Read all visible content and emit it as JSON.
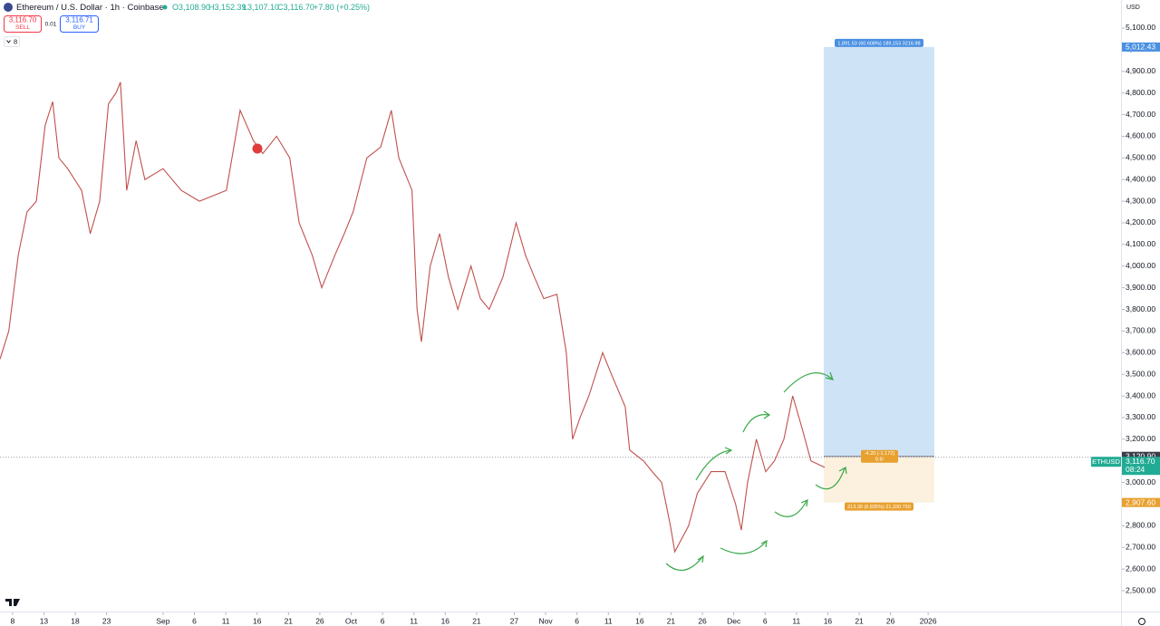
{
  "ui": {
    "currency": "USD",
    "indicators": "8",
    "sell": {
      "price": "3,116.70",
      "label": "SELL"
    },
    "spread": "0.01",
    "buy": {
      "price": "3,116.71",
      "label": "BUY"
    },
    "ohlc": {
      "open": "O3,108.90",
      "high": "H3,152.39",
      "low": "L3,107.10",
      "close": "C3,116.70",
      "change": "+7.80 (+0.25%)"
    },
    "symbol": "ETHUSD",
    "countdown": "08:24"
  },
  "chart_data": {
    "type": "line",
    "title": "Ethereum / U.S. Dollar · 1h · Coinbase",
    "color": "#c0504d",
    "x": [
      -2.0,
      -0.6,
      0.9,
      2.3,
      3.8,
      5.2,
      6.4,
      7.4,
      8.8,
      11.0,
      12.4,
      13.9,
      15.3,
      16.5,
      17.2,
      18.2,
      19.7,
      21.1,
      24.0,
      26.9,
      29.8,
      34.1,
      36.3,
      38.4,
      39.9,
      42.1,
      44.2,
      45.7,
      47.8,
      49.3,
      51.4,
      52.9,
      54.3,
      56.5,
      58.7,
      60.4,
      61.6,
      63.7,
      64.5,
      65.2,
      66.6,
      68.1,
      69.5,
      71.0,
      73.1,
      74.6,
      76.0,
      78.2,
      80.3,
      81.8,
      83.2,
      84.7,
      86.8,
      88.3,
      89.3,
      90.5,
      91.9,
      94.1,
      95.5,
      97.7,
      98.4,
      100.6,
      102.0,
      103.5,
      104.9,
      105.6,
      107.8,
      109.2,
      111.4,
      113.6,
      115.3,
      116.2,
      117.2,
      118.6,
      120.1,
      121.5,
      123.0,
      124.4,
      125.9,
      127.3,
      129.5
    ],
    "values": [
      3570,
      3700,
      4050,
      4250,
      4300,
      4650,
      4760,
      4500,
      4450,
      4350,
      4150,
      4300,
      4750,
      4800,
      4850,
      4350,
      4580,
      4400,
      4450,
      4350,
      4300,
      4350,
      4720,
      4580,
      4520,
      4600,
      4500,
      4200,
      4050,
      3900,
      4050,
      4150,
      4250,
      4500,
      4550,
      4720,
      4500,
      4350,
      3800,
      3650,
      4000,
      4150,
      3950,
      3800,
      4000,
      3850,
      3800,
      3950,
      4200,
      4050,
      3950,
      3850,
      3870,
      3600,
      3200,
      3300,
      3400,
      3600,
      3500,
      3350,
      3150,
      3100,
      3050,
      3000,
      2800,
      2680,
      2800,
      2950,
      3050,
      3050,
      2900,
      2780,
      3000,
      3200,
      3050,
      3100,
      3200,
      3400,
      3250,
      3100,
      3070
    ],
    "xlim": [
      -2,
      176.9
    ],
    "xticks": [
      {
        "value": 0,
        "label": "8"
      },
      {
        "value": 5,
        "label": "13"
      },
      {
        "value": 10,
        "label": "18"
      },
      {
        "value": 15,
        "label": "23"
      },
      {
        "value": 24,
        "label": "Sep"
      },
      {
        "value": 29,
        "label": "6"
      },
      {
        "value": 34,
        "label": "11"
      },
      {
        "value": 39,
        "label": "16"
      },
      {
        "value": 44,
        "label": "21"
      },
      {
        "value": 49,
        "label": "26"
      },
      {
        "value": 54,
        "label": "Oct"
      },
      {
        "value": 59,
        "label": "6"
      },
      {
        "value": 64,
        "label": "11"
      },
      {
        "value": 69,
        "label": "16"
      },
      {
        "value": 74,
        "label": "21"
      },
      {
        "value": 80,
        "label": "27"
      },
      {
        "value": 85,
        "label": "Nov"
      },
      {
        "value": 90,
        "label": "6"
      },
      {
        "value": 95,
        "label": "11"
      },
      {
        "value": 100,
        "label": "16"
      },
      {
        "value": 105,
        "label": "21"
      },
      {
        "value": 110,
        "label": "26"
      },
      {
        "value": 115,
        "label": "Dec"
      },
      {
        "value": 120,
        "label": "6"
      },
      {
        "value": 125,
        "label": "11"
      },
      {
        "value": 130,
        "label": "16"
      },
      {
        "value": 135,
        "label": "21"
      },
      {
        "value": 140,
        "label": "26"
      },
      {
        "value": 146,
        "label": "2026"
      }
    ],
    "ylim": [
      2400,
      5200
    ],
    "yticks": [
      {
        "value": 2500,
        "label": "2,500.00"
      },
      {
        "value": 2600,
        "label": "2,600.00"
      },
      {
        "value": 2700,
        "label": "2,700.00"
      },
      {
        "value": 2800,
        "label": "2,800.00"
      },
      {
        "value": 2900,
        "label": "2,900.00"
      },
      {
        "value": 3000,
        "label": "3,000.00"
      },
      {
        "value": 3100,
        "label": "3,100.00"
      },
      {
        "value": 3200,
        "label": "3,200.00"
      },
      {
        "value": 3300,
        "label": "3,300.00"
      },
      {
        "value": 3400,
        "label": "3,400.00"
      },
      {
        "value": 3500,
        "label": "3,500.00"
      },
      {
        "value": 3600,
        "label": "3,600.00"
      },
      {
        "value": 3700,
        "label": "3,700.00"
      },
      {
        "value": 3800,
        "label": "3,800.00"
      },
      {
        "value": 3900,
        "label": "3,900.00"
      },
      {
        "value": 4000,
        "label": "4,000.00"
      },
      {
        "value": 4100,
        "label": "4,100.00"
      },
      {
        "value": 4200,
        "label": "4,200.00"
      },
      {
        "value": 4300,
        "label": "4,300.00"
      },
      {
        "value": 4400,
        "label": "4,400.00"
      },
      {
        "value": 4500,
        "label": "4,500.00"
      },
      {
        "value": 4600,
        "label": "4,600.00"
      },
      {
        "value": 4700,
        "label": "4,700.00"
      },
      {
        "value": 4800,
        "label": "4,800.00"
      },
      {
        "value": 4900,
        "label": "4,900.00"
      },
      {
        "value": 5000,
        "label": "5,000.00"
      },
      {
        "value": 5100,
        "label": "5,100.00"
      }
    ],
    "last_price": {
      "value": 3116.7,
      "label": "3,116.70",
      "color": "#22ab94"
    },
    "position": {
      "target": {
        "value": 5012.43,
        "label": "5,012.43",
        "color": "#4a90e2"
      },
      "entry": {
        "value": 3120.9,
        "label": "3,120.90",
        "color": "#3a3e4a"
      },
      "stop": {
        "value": 2907.6,
        "label": "2,907.60",
        "color": "#e8a02e"
      },
      "target_info": "1,891.53 (60.608%) 189,153 3216.98",
      "entry_info": [
        "-4.20 (-1.172)",
        "8.6/"
      ],
      "stop_info": "213.30 (6.835%) 21,330 750"
    }
  }
}
